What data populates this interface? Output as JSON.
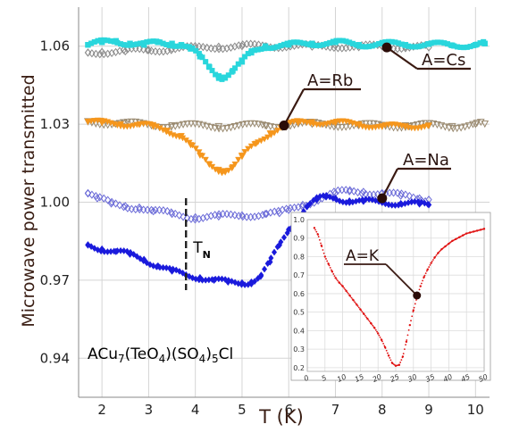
{
  "chart_data": [
    {
      "type": "scatter",
      "xlabel": "T (K)",
      "ylabel": "Microwave power transmitted",
      "xlim": [
        1.5,
        10.3
      ],
      "ylim": [
        0.925,
        1.075
      ],
      "xticks": [
        "2",
        "3",
        "4",
        "5",
        "6",
        "7",
        "8",
        "9",
        "10"
      ],
      "yticks": [
        "0.94",
        "0.97",
        "1.00",
        "1.03",
        "1.06"
      ],
      "grid": true,
      "annotations": {
        "formula": "ACu7(TeO4)(SO4)5Cl",
        "tn_label": "T",
        "tn_sub": "N",
        "tn_x": 3.8,
        "cs_label": "A=Cs",
        "rb_label": "A=Rb",
        "na_label": "A=Na",
        "cs_marker": [
          8.1,
          1.0595
        ],
        "rb_marker": [
          5.9,
          1.0295
        ],
        "na_marker": [
          8.0,
          1.0015
        ]
      },
      "series": [
        {
          "color": "#29d6dc",
          "marker": "square",
          "filled": true,
          "x": [
            1.7,
            2.0,
            2.3,
            2.6,
            2.9,
            3.2,
            3.5,
            3.7,
            3.9,
            4.1,
            4.3,
            4.5,
            4.6,
            4.8,
            5.0,
            5.2,
            5.5,
            6.0,
            6.5,
            7.0,
            7.5,
            8.0,
            8.5,
            9.0,
            9.5,
            10.0,
            10.2
          ],
          "y": [
            1.0605,
            1.0615,
            1.062,
            1.061,
            1.0605,
            1.0615,
            1.061,
            1.0605,
            1.059,
            1.056,
            1.052,
            1.0485,
            1.048,
            1.0505,
            1.054,
            1.0575,
            1.06,
            1.0605,
            1.061,
            1.0615,
            1.0605,
            1.061,
            1.0605,
            1.0608,
            1.0603,
            1.0605,
            1.061
          ]
        },
        {
          "color": "#8a8a8a",
          "marker": "diamond-open",
          "x": [
            1.7,
            2.0,
            2.5,
            3.0,
            3.5,
            4.0,
            4.5,
            5.0,
            5.5,
            6.0,
            6.5,
            7.0,
            7.5,
            8.0,
            8.5,
            9.0
          ],
          "y": [
            1.0575,
            1.0578,
            1.058,
            1.0585,
            1.059,
            1.0592,
            1.0598,
            1.06,
            1.06,
            1.0603,
            1.0598,
            1.0602,
            1.0596,
            1.06,
            1.0598,
            1.0595
          ]
        },
        {
          "color": "#f5961c",
          "marker": "triangle-down",
          "filled": true,
          "x": [
            1.7,
            2.0,
            2.4,
            2.8,
            3.1,
            3.4,
            3.7,
            3.9,
            4.1,
            4.3,
            4.5,
            4.6,
            4.8,
            5.0,
            5.3,
            5.6,
            5.9,
            6.2,
            6.5,
            7.0,
            7.5,
            8.0,
            8.5,
            9.0
          ],
          "y": [
            1.031,
            1.0305,
            1.03,
            1.0298,
            1.029,
            1.0275,
            1.0255,
            1.022,
            1.018,
            1.0145,
            1.0125,
            1.012,
            1.0135,
            1.0175,
            1.0225,
            1.0265,
            1.0295,
            1.0305,
            1.0308,
            1.0305,
            1.03,
            1.029,
            1.0292,
            1.0295
          ]
        },
        {
          "color": "#9a8a70",
          "marker": "triangle-down-open",
          "x": [
            1.7,
            2.5,
            3.5,
            4.5,
            5.5,
            6.0,
            6.5,
            7.0,
            7.5,
            8.0,
            8.5,
            9.0,
            9.5,
            10.0,
            10.2
          ],
          "y": [
            1.031,
            1.0302,
            1.0295,
            1.0292,
            1.0295,
            1.0298,
            1.03,
            1.0298,
            1.0295,
            1.0295,
            1.0295,
            1.0295,
            1.0292,
            1.03,
            1.0302
          ]
        },
        {
          "color": "#6c6cd8",
          "marker": "diamond-open",
          "x": [
            1.7,
            1.9,
            2.2,
            2.5,
            2.8,
            3.1,
            3.5,
            4.0,
            4.5,
            5.0,
            5.5,
            5.8,
            6.0,
            6.3,
            6.6,
            7.0,
            7.3,
            7.6,
            8.0,
            8.4,
            8.8,
            9.0
          ],
          "y": [
            1.0035,
            1.0015,
            0.9995,
            0.9985,
            0.998,
            0.9965,
            0.9955,
            0.9942,
            0.9945,
            0.995,
            0.9955,
            0.9958,
            0.997,
            0.999,
            1.001,
            1.0035,
            1.0042,
            1.004,
            1.0035,
            1.0025,
            1.0015,
            1.001
          ]
        },
        {
          "color": "#1a1adc",
          "marker": "diamond",
          "filled": true,
          "x": [
            1.7,
            2.0,
            2.3,
            2.6,
            2.9,
            3.2,
            3.5,
            3.8,
            4.1,
            4.4,
            4.7,
            5.0,
            5.2,
            5.4,
            5.6,
            5.8,
            6.0,
            6.2,
            6.4,
            6.6,
            6.8,
            7.0,
            7.3,
            7.6,
            8.0,
            8.4,
            8.8,
            9.0
          ],
          "y": [
            0.9835,
            0.982,
            0.981,
            0.98,
            0.978,
            0.9755,
            0.9735,
            0.972,
            0.971,
            0.97,
            0.9693,
            0.969,
            0.9693,
            0.9715,
            0.977,
            0.9835,
            0.9895,
            0.9945,
            0.9985,
            1.001,
            1.002,
            1.0015,
            1.0005,
            1.0003,
            1.0,
            0.9995,
            0.9993,
            0.999
          ]
        }
      ]
    },
    {
      "type": "scatter",
      "title": "A=K",
      "xlim": [
        0,
        50
      ],
      "ylim": [
        0.18,
        1.0
      ],
      "xticks": [
        "0",
        "5",
        "10",
        "15",
        "20",
        "25",
        "30",
        "35",
        "40",
        "45",
        "50"
      ],
      "yticks": [
        "0.2",
        "0.3",
        "0.4",
        "0.5",
        "0.6",
        "0.7",
        "0.8",
        "0.9",
        "1.0"
      ],
      "grid": true,
      "marker_point": [
        31,
        0.59
      ],
      "series": [
        {
          "color": "#e01010",
          "marker": "dot",
          "x": [
            2,
            3,
            4,
            5,
            6,
            7,
            8,
            9,
            10,
            11,
            12,
            13,
            14,
            15,
            16,
            17,
            18,
            19,
            20,
            21,
            22,
            23,
            24,
            25,
            26,
            27,
            28,
            29,
            30,
            31,
            32,
            33,
            34,
            35,
            36,
            37,
            38,
            39,
            40,
            41,
            42,
            43,
            44,
            45,
            46,
            47,
            48,
            49,
            50
          ],
          "y": [
            0.955,
            0.92,
            0.86,
            0.8,
            0.76,
            0.72,
            0.685,
            0.66,
            0.64,
            0.615,
            0.59,
            0.565,
            0.54,
            0.515,
            0.49,
            0.465,
            0.44,
            0.415,
            0.385,
            0.35,
            0.31,
            0.265,
            0.225,
            0.21,
            0.215,
            0.26,
            0.34,
            0.43,
            0.51,
            0.58,
            0.64,
            0.69,
            0.73,
            0.765,
            0.795,
            0.82,
            0.84,
            0.855,
            0.87,
            0.885,
            0.895,
            0.905,
            0.915,
            0.925,
            0.93,
            0.935,
            0.94,
            0.945,
            0.95
          ]
        }
      ]
    }
  ]
}
